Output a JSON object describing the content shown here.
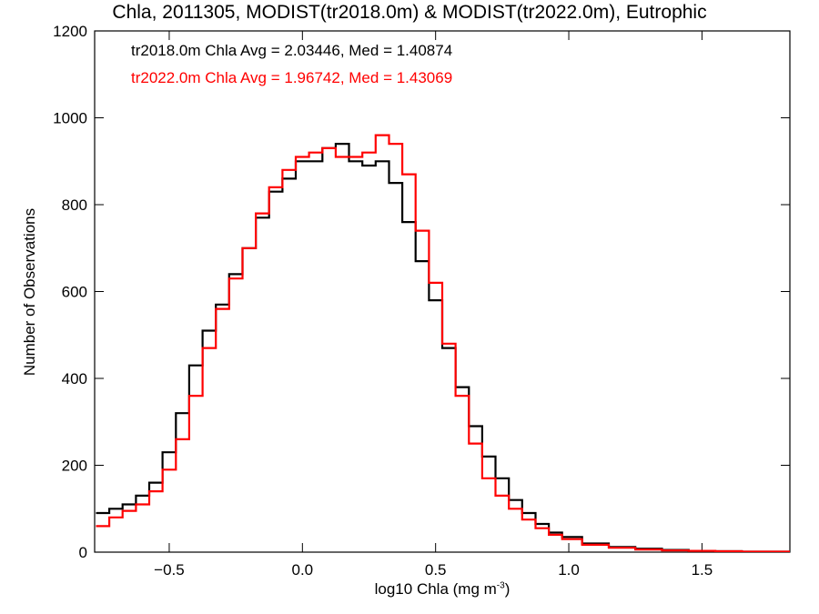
{
  "title": "Chla, 2011305, MODIST(tr2018.0m) & MODIST(tr2022.0m), Eutrophic",
  "xlabel": "log10 Chla (mg m",
  "xlabel_sup": "-3",
  "xlabel_tail": ")",
  "ylabel": "Number of Observations",
  "stats": [
    {
      "text": "tr2018.0m Chla Avg = 2.03446, Med = 1.40874",
      "color": "#000000"
    },
    {
      "text": "tr2022.0m Chla Avg = 1.96742, Med = 1.43069",
      "color": "#ff0000"
    }
  ],
  "chart_data": {
    "type": "line",
    "step": true,
    "xlim": [
      -0.78,
      1.83
    ],
    "ylim": [
      0,
      1200
    ],
    "xticks": [
      -0.5,
      0.0,
      0.5,
      1.0,
      1.5
    ],
    "xtick_labels": [
      "−0.5",
      "0.0",
      "0.5",
      "1.0",
      "1.5"
    ],
    "yticks": [
      0,
      200,
      400,
      600,
      800,
      1000,
      1200
    ],
    "ytick_labels": [
      "0",
      "200",
      "400",
      "600",
      "800",
      "1000",
      "1200"
    ],
    "x": [
      -0.75,
      -0.7,
      -0.65,
      -0.6,
      -0.55,
      -0.5,
      -0.45,
      -0.4,
      -0.35,
      -0.3,
      -0.25,
      -0.2,
      -0.15,
      -0.1,
      -0.05,
      0.0,
      0.05,
      0.1,
      0.15,
      0.2,
      0.25,
      0.3,
      0.35,
      0.4,
      0.45,
      0.5,
      0.55,
      0.6,
      0.65,
      0.7,
      0.75,
      0.8,
      0.85,
      0.9,
      0.95,
      1.0,
      1.1,
      1.2,
      1.3,
      1.4,
      1.5,
      1.6,
      1.7,
      1.8
    ],
    "series": [
      {
        "name": "tr2018.0m",
        "color": "#000000",
        "values": [
          90,
          100,
          110,
          130,
          160,
          230,
          320,
          430,
          510,
          570,
          640,
          700,
          770,
          830,
          860,
          900,
          900,
          930,
          940,
          900,
          890,
          900,
          850,
          760,
          670,
          580,
          470,
          380,
          290,
          220,
          170,
          120,
          90,
          65,
          45,
          35,
          20,
          12,
          8,
          5,
          3,
          2,
          1,
          1
        ]
      },
      {
        "name": "tr2022.0m",
        "color": "#ff0000",
        "values": [
          60,
          80,
          95,
          110,
          140,
          190,
          260,
          360,
          470,
          560,
          630,
          700,
          780,
          840,
          880,
          910,
          920,
          930,
          910,
          910,
          920,
          960,
          940,
          870,
          740,
          620,
          480,
          360,
          250,
          170,
          130,
          100,
          75,
          55,
          40,
          30,
          17,
          10,
          6,
          4,
          3,
          2,
          1,
          1
        ]
      }
    ]
  }
}
